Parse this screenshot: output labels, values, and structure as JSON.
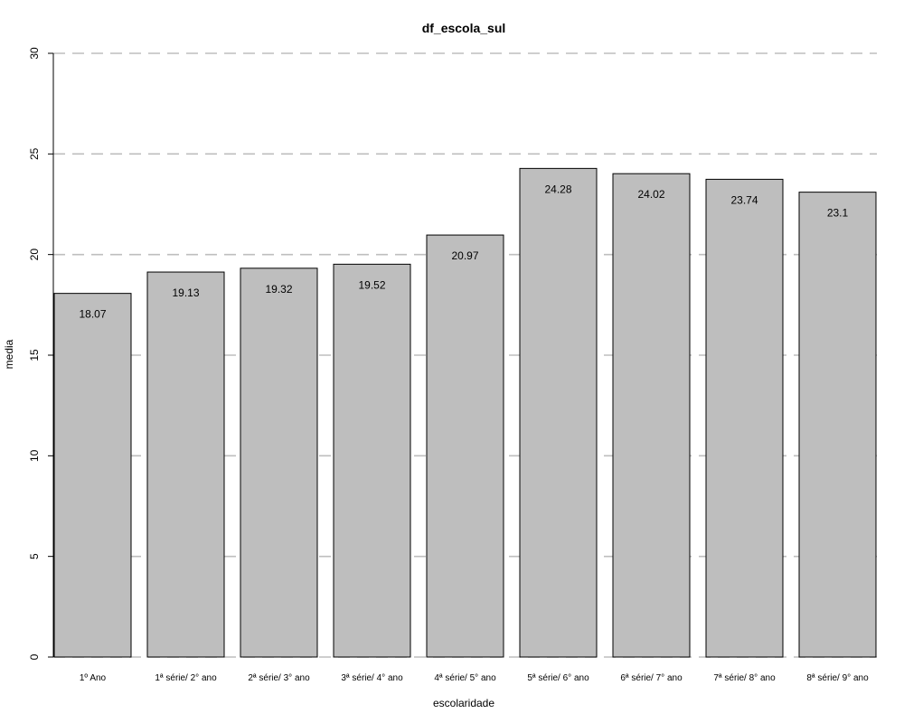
{
  "chart_data": {
    "type": "bar",
    "title": "df_escola_sul",
    "xlabel": "escolaridade",
    "ylabel": "media",
    "categories": [
      "1º Ano",
      "1ª série/ 2° ano",
      "2ª série/ 3° ano",
      "3ª série/ 4° ano",
      "4ª série/ 5° ano",
      "5ª série/ 6° ano",
      "6ª série/ 7° ano",
      "7ª série/ 8° ano",
      "8ª série/ 9° ano"
    ],
    "values": [
      18.07,
      19.13,
      19.32,
      19.52,
      20.97,
      24.28,
      24.02,
      23.74,
      23.1
    ],
    "data_labels": [
      "18.07",
      "19.13",
      "19.32",
      "19.52",
      "20.97",
      "24.28",
      "24.02",
      "23.74",
      "23.1"
    ],
    "ylim": [
      0,
      30
    ],
    "yticks": [
      0,
      5,
      10,
      15,
      20,
      25,
      30
    ],
    "ytick_labels": [
      "0",
      "5",
      "10",
      "15",
      "20",
      "25",
      "30"
    ],
    "grid": "horizontal dashed",
    "bar_color": "#bebebe",
    "grid_color": "#bebebe"
  }
}
